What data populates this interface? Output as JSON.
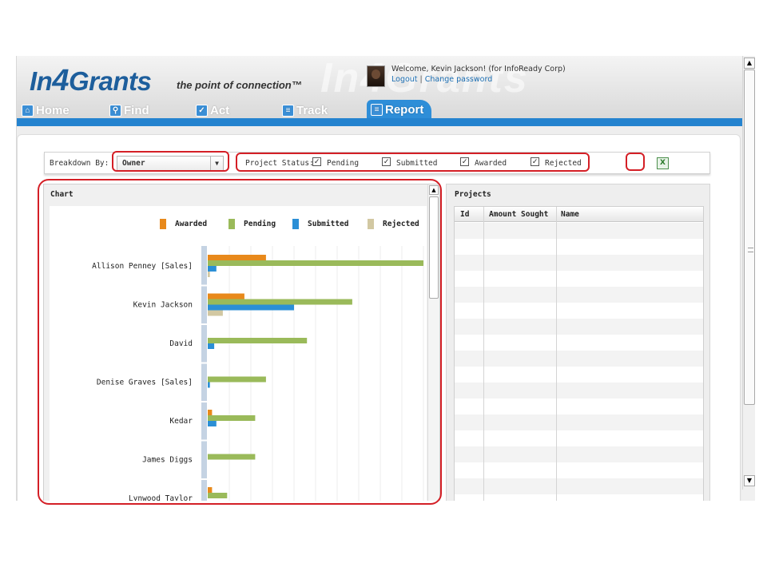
{
  "brand": {
    "logo_prefix": "In",
    "logo_number": "4",
    "logo_suffix": "Grants",
    "tagline": "the point of connection™"
  },
  "user": {
    "welcome": "Welcome, Kevin Jackson! (for InfoReady Corp)",
    "logout": "Logout",
    "separator": "|",
    "change_password": "Change password"
  },
  "nav": {
    "tabs": [
      {
        "label": "Home",
        "icon": "home-icon"
      },
      {
        "label": "Find",
        "icon": "magnifier-icon"
      },
      {
        "label": "Act",
        "icon": "checkmark-icon"
      },
      {
        "label": "Track",
        "icon": "people-icon"
      },
      {
        "label": "Report",
        "icon": "document-icon",
        "active": true
      }
    ]
  },
  "toolbar": {
    "breakdown_label": "Breakdown By:",
    "breakdown_value": "Owner",
    "status_label": "Project Status:",
    "checkboxes": [
      {
        "label": "Pending",
        "checked": true
      },
      {
        "label": "Submitted",
        "checked": true
      },
      {
        "label": "Awarded",
        "checked": true
      },
      {
        "label": "Rejected",
        "checked": true
      }
    ],
    "export_icon": "excel-export-icon"
  },
  "chart_panel": {
    "title": "Chart"
  },
  "projects": {
    "title": "Projects",
    "columns": [
      "Id",
      "Amount Sought",
      "Name"
    ],
    "rows": []
  },
  "colors": {
    "awarded": "#e8891b",
    "pending": "#9aba5a",
    "submitted": "#2b8fd6",
    "rejected": "#d2c8a2",
    "accent": "#2483cf",
    "highlight": "#d41f26"
  },
  "chart_data": {
    "type": "bar",
    "orientation": "horizontal",
    "legend_placement": "top-right",
    "grid": true,
    "xlim": [
      0,
      100
    ],
    "categories": [
      "Allison Penney [Sales]",
      "Kevin Jackson",
      "David",
      "Denise Graves [Sales]",
      "Kedar",
      "James Diggs",
      "Lynwood Taylor"
    ],
    "series": [
      {
        "name": "Awarded",
        "color": "#e8891b",
        "values": [
          27,
          17,
          0,
          0,
          2,
          0,
          2
        ]
      },
      {
        "name": "Pending",
        "color": "#9aba5a",
        "values": [
          100,
          67,
          46,
          27,
          22,
          22,
          9
        ]
      },
      {
        "name": "Submitted",
        "color": "#2b8fd6",
        "values": [
          4,
          40,
          3,
          1,
          4,
          0,
          0
        ]
      },
      {
        "name": "Rejected",
        "color": "#d2c8a2",
        "values": [
          1,
          7,
          0,
          0,
          0,
          0,
          0
        ]
      }
    ]
  }
}
